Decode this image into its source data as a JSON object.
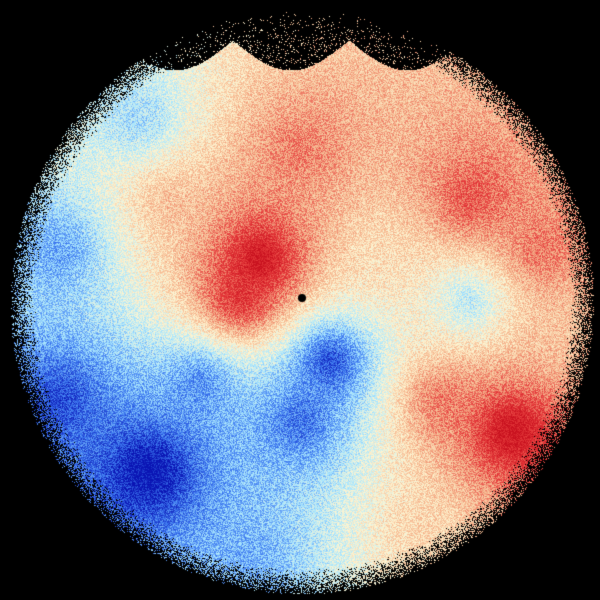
{
  "image": {
    "kind": "doppler-velocity-ppi",
    "background_color": "#000000",
    "colormap": [
      "#0a14b4",
      "#3c78f0",
      "#a8e6ff",
      "#fff6d2",
      "#f5b48c",
      "#e63c3c",
      "#c8101e"
    ],
    "center_marker_color": "#000000"
  }
}
